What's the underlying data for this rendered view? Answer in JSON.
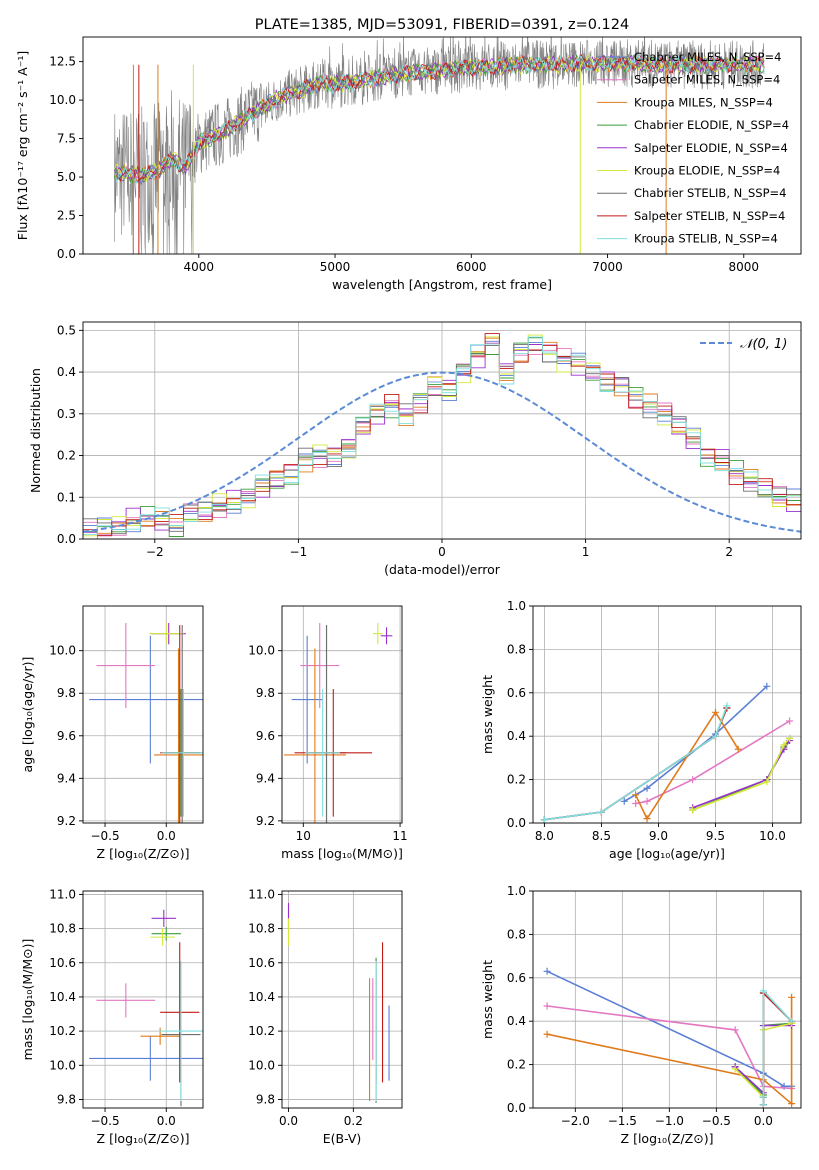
{
  "colors": {
    "chabrier_miles": "#5b7fd6",
    "salpeter_miles": "#e377c2",
    "kroupa_miles": "#e07b1c",
    "chabrier_elodie": "#3a9e3a",
    "salpeter_elodie": "#9932cc",
    "kroupa_elodie": "#d4e83a",
    "chabrier_stelib": "#6e6e6e",
    "salpeter_stelib": "#c11b17",
    "kroupa_stelib": "#7fdfdf",
    "data_spectrum": "#808080"
  },
  "chart_data": [
    {
      "id": "spectrum",
      "type": "line",
      "title": "PLATE=1385, MJD=53091, FIBERID=0391, z=0.124",
      "xlabel": "wavelength [Angstrom, rest frame]",
      "ylabel": "Flux [fλ10⁻¹⁷ erg cm⁻² s⁻¹ A⁻¹]",
      "xlim": [
        3150,
        8420
      ],
      "ylim": [
        0,
        14.1
      ],
      "xticks": [
        "4000",
        "5000",
        "6000",
        "7000",
        "8000"
      ],
      "yticks": [
        "0.0",
        "2.5",
        "5.0",
        "7.5",
        "10.0",
        "12.5"
      ],
      "legend_position": "right",
      "legend": [
        "Chabrier MILES, N_SSP=4",
        "Salpeter MILES, N_SSP=4",
        "Kroupa MILES, N_SSP=4",
        "Chabrier ELODIE, N_SSP=4",
        "Salpeter ELODIE, N_SSP=4",
        "Kroupa ELODIE, N_SSP=4",
        "Chabrier STELIB, N_SSP=4",
        "Salpeter STELIB, N_SSP=4",
        "Kroupa STELIB, N_SSP=4"
      ],
      "continuum": [
        [
          3380,
          5.3
        ],
        [
          3500,
          5.2
        ],
        [
          3600,
          5.1
        ],
        [
          3700,
          5.4
        ],
        [
          3800,
          6.2
        ],
        [
          3900,
          5.6
        ],
        [
          4000,
          7.2
        ],
        [
          4100,
          7.6
        ],
        [
          4200,
          8.0
        ],
        [
          4300,
          8.6
        ],
        [
          4400,
          9.2
        ],
        [
          4500,
          9.7
        ],
        [
          4600,
          10.2
        ],
        [
          4700,
          10.5
        ],
        [
          4800,
          10.8
        ],
        [
          4900,
          11.1
        ],
        [
          5000,
          11.0
        ],
        [
          5200,
          11.3
        ],
        [
          5400,
          11.6
        ],
        [
          5600,
          11.8
        ],
        [
          5800,
          12.0
        ],
        [
          6000,
          12.1
        ],
        [
          6200,
          12.2
        ],
        [
          6400,
          12.3
        ],
        [
          6600,
          12.3
        ],
        [
          6800,
          12.4
        ],
        [
          7000,
          12.4
        ],
        [
          7200,
          12.4
        ],
        [
          7400,
          12.3
        ],
        [
          7600,
          12.3
        ],
        [
          7800,
          12.3
        ],
        [
          8000,
          12.3
        ],
        [
          8150,
          12.3
        ]
      ]
    },
    {
      "id": "residuals",
      "type": "line",
      "xlabel": "(data-model)/error",
      "ylabel": "Normed distribution",
      "xlim": [
        -2.5,
        2.5
      ],
      "ylim": [
        0,
        0.52
      ],
      "xticks": [
        "−2",
        "−1",
        "0",
        "1",
        "2"
      ],
      "yticks": [
        "0.0",
        "0.1",
        "0.2",
        "0.3",
        "0.4",
        "0.5"
      ],
      "legend": [
        "𝒩(0, 1)"
      ],
      "legend_position": "top-right",
      "bin_width": 0.1,
      "bin_start": -2.5,
      "histogram_base": [
        0.02,
        0.025,
        0.03,
        0.045,
        0.05,
        0.045,
        0.03,
        0.06,
        0.065,
        0.08,
        0.09,
        0.1,
        0.125,
        0.14,
        0.155,
        0.19,
        0.2,
        0.2,
        0.22,
        0.27,
        0.3,
        0.32,
        0.3,
        0.33,
        0.37,
        0.36,
        0.4,
        0.44,
        0.47,
        0.4,
        0.45,
        0.47,
        0.45,
        0.43,
        0.42,
        0.4,
        0.38,
        0.37,
        0.34,
        0.32,
        0.3,
        0.27,
        0.24,
        0.2,
        0.19,
        0.16,
        0.14,
        0.12,
        0.1,
        0.09
      ]
    },
    {
      "id": "z-age",
      "type": "scatter",
      "xlabel": "Z [log₁₀(Z/Z⊙)]",
      "ylabel": "age  [log₁₀(age/yr)]",
      "xlim": [
        -0.68,
        0.3
      ],
      "ylim": [
        9.19,
        10.21
      ],
      "xticks": [
        "−0.5",
        "0.0"
      ],
      "yticks": [
        "9.2",
        "9.4",
        "9.6",
        "9.8",
        "10.0"
      ],
      "points": [
        {
          "model": "chabrier_miles",
          "x": -0.13,
          "xerr": 0.5,
          "y": 9.77,
          "yerr": 0.3
        },
        {
          "model": "salpeter_miles",
          "x": -0.33,
          "xerr": 0.24,
          "y": 9.93,
          "yerr": 0.2
        },
        {
          "model": "kroupa_miles",
          "x": 0.1,
          "xerr": 0.2,
          "y": 9.51,
          "yerr": 0.5
        },
        {
          "model": "chabrier_elodie",
          "x": 0.12,
          "xerr": 0.16,
          "y": 9.52,
          "yerr": 0.3
        },
        {
          "model": "salpeter_elodie",
          "x": 0.02,
          "xerr": 0.14,
          "y": 10.08,
          "yerr": 0.05
        },
        {
          "model": "kroupa_elodie",
          "x": 0.0,
          "xerr": 0.14,
          "y": 10.08,
          "yerr": 0.05
        },
        {
          "model": "chabrier_stelib",
          "x": 0.13,
          "xerr": 0.16,
          "y": 9.52,
          "yerr": 0.6
        },
        {
          "model": "salpeter_stelib",
          "x": 0.11,
          "xerr": 0.16,
          "y": 9.52,
          "yerr": 0.6
        },
        {
          "model": "kroupa_stelib",
          "x": 0.14,
          "xerr": 0.18,
          "y": 9.52,
          "yerr": 0.3
        }
      ]
    },
    {
      "id": "mass-age",
      "type": "scatter",
      "xlabel": "mass [log₁₀(M/M⊙)]",
      "xlim": [
        9.78,
        11.02
      ],
      "ylim": [
        9.19,
        10.21
      ],
      "xticks": [
        "10",
        "11"
      ],
      "yticks": [
        "9.2",
        "9.4",
        "9.6",
        "9.8",
        "10.0"
      ],
      "points": [
        {
          "model": "chabrier_miles",
          "x": 10.04,
          "xerr": 0.16,
          "y": 9.77,
          "yerr": 0.3
        },
        {
          "model": "salpeter_miles",
          "x": 10.17,
          "xerr": 0.2,
          "y": 9.93,
          "yerr": 0.2
        },
        {
          "model": "kroupa_miles",
          "x": 10.12,
          "xerr": 0.32,
          "y": 9.51,
          "yerr": 0.5
        },
        {
          "model": "chabrier_elodie",
          "x": 10.24,
          "xerr": 0.14,
          "y": 9.52,
          "yerr": 0.6
        },
        {
          "model": "salpeter_elodie",
          "x": 10.86,
          "xerr": 0.06,
          "y": 10.07,
          "yerr": 0.04
        },
        {
          "model": "kroupa_elodie",
          "x": 10.77,
          "xerr": 0.05,
          "y": 10.08,
          "yerr": 0.05
        },
        {
          "model": "chabrier_stelib",
          "x": 10.24,
          "xerr": 0.2,
          "y": 9.52,
          "yerr": 0.6
        },
        {
          "model": "salpeter_stelib",
          "x": 10.31,
          "xerr": 0.4,
          "y": 9.52,
          "yerr": 0.3
        },
        {
          "model": "kroupa_stelib",
          "x": 10.2,
          "xerr": 0.18,
          "y": 9.52,
          "yerr": 0.3
        }
      ]
    },
    {
      "id": "age-weight",
      "type": "line",
      "xlabel": "age  [log₁₀(age/yr)]",
      "ylabel": "mass weight",
      "xlim": [
        7.9,
        10.25
      ],
      "ylim": [
        0,
        1
      ],
      "xticks": [
        "8.0",
        "8.5",
        "9.0",
        "9.5",
        "10.0"
      ],
      "yticks": [
        "0.0",
        "0.2",
        "0.4",
        "0.6",
        "0.8",
        "1.0"
      ],
      "series": [
        {
          "model": "chabrier_miles",
          "x": [
            8.7,
            8.9,
            9.5,
            9.95
          ],
          "y": [
            0.1,
            0.16,
            0.41,
            0.63
          ]
        },
        {
          "model": "salpeter_miles",
          "x": [
            8.8,
            8.9,
            9.3,
            10.15
          ],
          "y": [
            0.09,
            0.1,
            0.2,
            0.47
          ]
        },
        {
          "model": "kroupa_miles",
          "x": [
            8.8,
            8.9,
            9.5,
            9.7
          ],
          "y": [
            0.13,
            0.02,
            0.51,
            0.34
          ]
        },
        {
          "model": "chabrier_elodie",
          "x": [
            9.3,
            9.95,
            10.1,
            10.15
          ],
          "y": [
            0.06,
            0.2,
            0.35,
            0.39
          ]
        },
        {
          "model": "salpeter_elodie",
          "x": [
            9.3,
            9.95,
            10.1,
            10.15
          ],
          "y": [
            0.07,
            0.2,
            0.34,
            0.38
          ]
        },
        {
          "model": "kroupa_elodie",
          "x": [
            9.3,
            9.95,
            10.1,
            10.15
          ],
          "y": [
            0.06,
            0.19,
            0.36,
            0.39
          ]
        },
        {
          "model": "chabrier_stelib",
          "x": [
            8.0,
            8.5,
            9.5,
            9.6
          ],
          "y": [
            0.015,
            0.05,
            0.4,
            0.53
          ]
        },
        {
          "model": "salpeter_stelib",
          "x": [
            8.0,
            8.5,
            9.5,
            9.6
          ],
          "y": [
            0.015,
            0.05,
            0.4,
            0.53
          ]
        },
        {
          "model": "kroupa_stelib",
          "x": [
            8.0,
            8.5,
            9.5,
            9.6
          ],
          "y": [
            0.015,
            0.05,
            0.4,
            0.54
          ]
        }
      ]
    },
    {
      "id": "z-mass",
      "type": "scatter",
      "xlabel": "Z [log₁₀(Z/Z⊙)]",
      "ylabel": "mass [log₁₀(M/M⊙)]",
      "xlim": [
        -0.68,
        0.3
      ],
      "ylim": [
        9.75,
        11.02
      ],
      "xticks": [
        "−0.5",
        "0.0"
      ],
      "yticks": [
        "9.8",
        "10.0",
        "10.2",
        "10.4",
        "10.6",
        "10.8",
        "11.0"
      ],
      "points": [
        {
          "model": "chabrier_miles",
          "x": -0.13,
          "xerr": 0.5,
          "y": 10.04,
          "yerr": 0.13
        },
        {
          "model": "salpeter_miles",
          "x": -0.33,
          "xerr": 0.24,
          "y": 10.38,
          "yerr": 0.1
        },
        {
          "model": "kroupa_miles",
          "x": -0.05,
          "xerr": 0.16,
          "y": 10.17,
          "yerr": 0.05
        },
        {
          "model": "chabrier_elodie",
          "x": 0.0,
          "xerr": 0.12,
          "y": 10.77,
          "yerr": 0.04
        },
        {
          "model": "salpeter_elodie",
          "x": -0.02,
          "xerr": 0.1,
          "y": 10.86,
          "yerr": 0.05
        },
        {
          "model": "kroupa_elodie",
          "x": -0.03,
          "xerr": 0.1,
          "y": 10.75,
          "yerr": 0.05
        },
        {
          "model": "chabrier_stelib",
          "x": 0.12,
          "xerr": 0.16,
          "y": 10.18,
          "yerr": 0.42
        },
        {
          "model": "salpeter_stelib",
          "x": 0.11,
          "xerr": 0.16,
          "y": 10.31,
          "yerr": 0.41
        },
        {
          "model": "kroupa_stelib",
          "x": 0.12,
          "xerr": 0.18,
          "y": 10.2,
          "yerr": 0.41
        }
      ]
    },
    {
      "id": "ebv-mass",
      "type": "scatter",
      "xlabel": "E(B-V)",
      "xlim": [
        -0.02,
        0.35
      ],
      "ylim": [
        9.75,
        11.02
      ],
      "xticks": [
        "0.0",
        "0.2"
      ],
      "yticks": [
        "9.8",
        "10.0",
        "10.2",
        "10.4",
        "10.6",
        "10.8",
        "11.0"
      ],
      "points": [
        {
          "model": "chabrier_miles",
          "x": 0.31,
          "y": 10.13,
          "yerr": 0.22
        },
        {
          "model": "salpeter_miles",
          "x": 0.26,
          "y": 10.27,
          "yerr": 0.24
        },
        {
          "model": "kroupa_miles",
          "x": 0.25,
          "y": 10.15,
          "yerr": 0.36
        },
        {
          "model": "chabrier_elodie",
          "x": 0.27,
          "y": 10.26,
          "yerr": 0.37
        },
        {
          "model": "salpeter_elodie",
          "x": 0.0,
          "y": 10.88,
          "yerr": 0.07
        },
        {
          "model": "kroupa_elodie",
          "x": 0.0,
          "y": 10.78,
          "yerr": 0.08
        },
        {
          "model": "chabrier_stelib",
          "x": 0.27,
          "y": 10.2,
          "yerr": 0.42
        },
        {
          "model": "salpeter_stelib",
          "x": 0.29,
          "y": 10.31,
          "yerr": 0.41
        },
        {
          "model": "kroupa_stelib",
          "x": 0.27,
          "y": 10.2,
          "yerr": 0.41
        }
      ]
    },
    {
      "id": "z-weight",
      "type": "line",
      "xlabel": "Z [log₁₀(Z/Z⊙)]",
      "ylabel": "mass weight",
      "xlim": [
        -2.45,
        0.4
      ],
      "ylim": [
        0,
        1
      ],
      "xticks": [
        "−2.0",
        "−1.5",
        "−1.0",
        "−0.5",
        "0.0"
      ],
      "yticks": [
        "0.0",
        "0.2",
        "0.4",
        "0.6",
        "0.8",
        "1.0"
      ],
      "series": [
        {
          "model": "chabrier_miles",
          "x": [
            -2.3,
            0.0,
            0.22,
            0.3
          ],
          "y": [
            0.63,
            0.16,
            0.1,
            0.1
          ]
        },
        {
          "model": "salpeter_miles",
          "x": [
            -2.3,
            -0.3,
            0.0,
            0.3
          ],
          "y": [
            0.47,
            0.36,
            0.1,
            0.09
          ]
        },
        {
          "model": "kroupa_miles",
          "x": [
            -2.3,
            0.0,
            0.3,
            0.3
          ],
          "y": [
            0.34,
            0.13,
            0.02,
            0.51
          ]
        },
        {
          "model": "chabrier_elodie",
          "x": [
            -0.3,
            0.0,
            0.0,
            0.3
          ],
          "y": [
            0.19,
            0.06,
            0.38,
            0.39
          ]
        },
        {
          "model": "salpeter_elodie",
          "x": [
            -0.3,
            0.0,
            0.0,
            0.3
          ],
          "y": [
            0.19,
            0.07,
            0.38,
            0.38
          ]
        },
        {
          "model": "kroupa_elodie",
          "x": [
            -0.3,
            0.0,
            0.0,
            0.3
          ],
          "y": [
            0.18,
            0.05,
            0.36,
            0.39
          ]
        },
        {
          "model": "chabrier_stelib",
          "x": [
            0.0,
            0.0,
            0.0,
            0.3
          ],
          "y": [
            0.015,
            0.05,
            0.53,
            0.4
          ]
        },
        {
          "model": "salpeter_stelib",
          "x": [
            0.0,
            0.0,
            0.0,
            0.3
          ],
          "y": [
            0.015,
            0.05,
            0.53,
            0.4
          ]
        },
        {
          "model": "kroupa_stelib",
          "x": [
            0.0,
            0.0,
            0.0,
            0.3
          ],
          "y": [
            0.015,
            0.05,
            0.54,
            0.4
          ]
        }
      ]
    }
  ]
}
